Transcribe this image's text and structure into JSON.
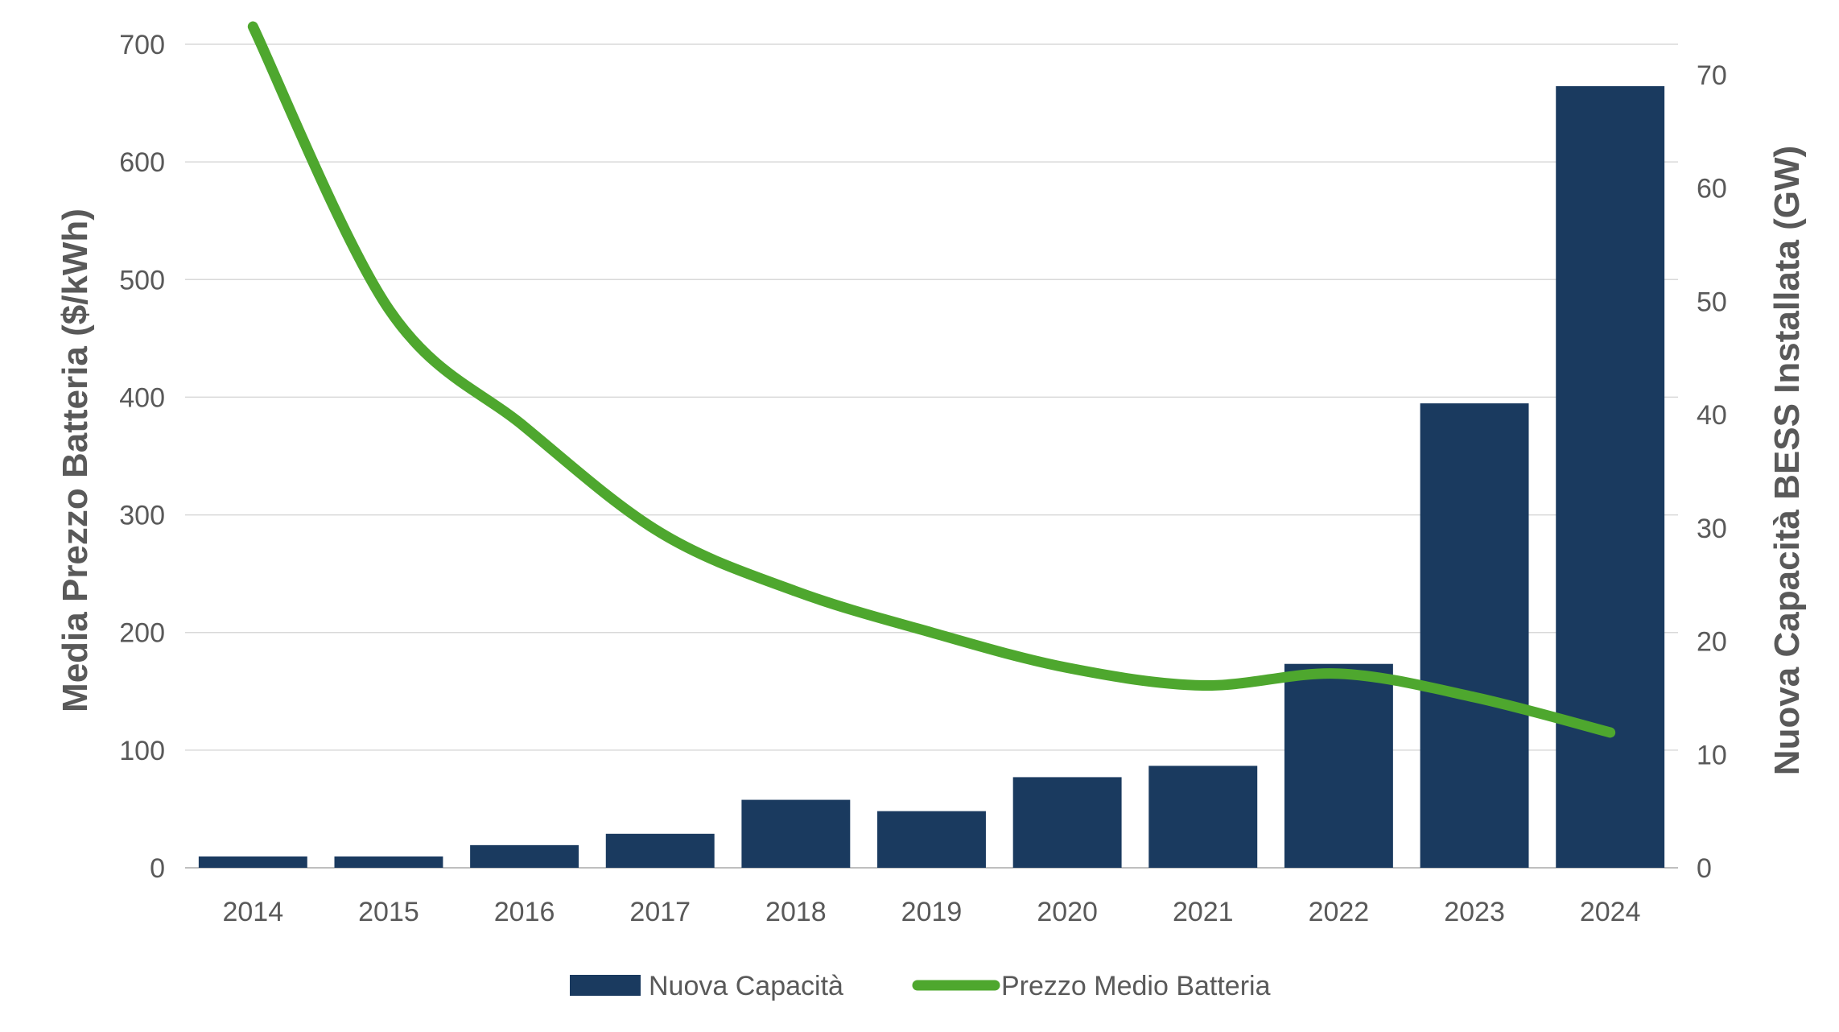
{
  "chart_data": {
    "type": "bar+line",
    "categories": [
      "2014",
      "2015",
      "2016",
      "2017",
      "2018",
      "2019",
      "2020",
      "2021",
      "2022",
      "2023",
      "2024"
    ],
    "series": [
      {
        "name": "Nuova Capacità",
        "type": "bar",
        "axis": "right",
        "color": "#1a3a5f",
        "values": [
          1,
          1,
          2,
          3,
          6,
          5,
          8,
          9,
          18,
          41,
          69
        ]
      },
      {
        "name": "Prezzo Medio Batteria",
        "type": "line",
        "axis": "left",
        "color": "#4ea72e",
        "values": [
          715,
          475,
          375,
          285,
          235,
          200,
          170,
          155,
          165,
          145,
          115
        ]
      }
    ],
    "y_left": {
      "label": "Media Prezzo Batteria ($/kWh)",
      "ticks": [
        "0",
        "100",
        "200",
        "300",
        "400",
        "500",
        "600",
        "700"
      ],
      "ylim": [
        0,
        700
      ]
    },
    "y_right": {
      "label": "Nuova Capacità BESS Installata (GW)",
      "ticks": [
        "0",
        "10",
        "20",
        "30",
        "40",
        "50",
        "60",
        "70"
      ],
      "ylim": [
        0,
        72.7
      ]
    },
    "grid": true,
    "legend_position": "bottom"
  },
  "legend": {
    "items": [
      {
        "label": "Nuova Capacità",
        "color": "#1a3a5f",
        "kind": "box"
      },
      {
        "label": "Prezzo Medio Batteria",
        "color": "#4ea72e",
        "kind": "line"
      }
    ]
  }
}
